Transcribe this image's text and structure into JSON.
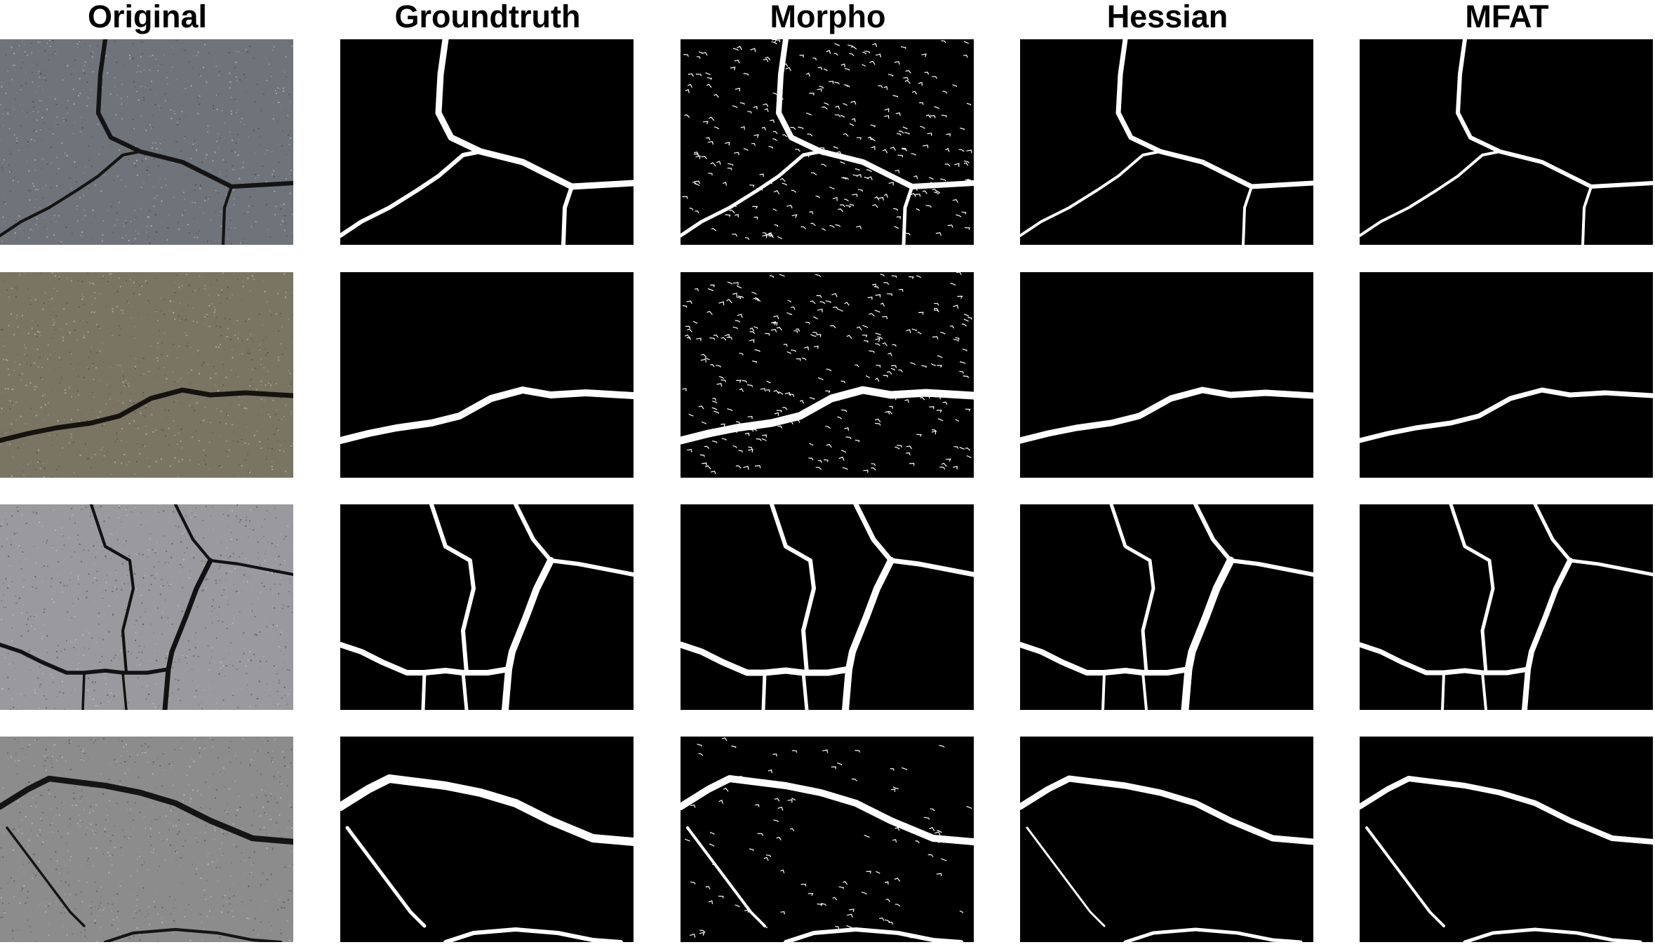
{
  "columns": [
    {
      "label": "Original"
    },
    {
      "label": "Groundtruth"
    },
    {
      "label": "Morpho"
    },
    {
      "label": "Hessian"
    },
    {
      "label": "MFAT"
    }
  ],
  "rows": [
    {
      "original_bg": "#6f747a",
      "crack_color": "#141414"
    },
    {
      "original_bg": "#7a7562",
      "crack_color": "#151310"
    },
    {
      "original_bg": "#9a9a9e",
      "crack_color": "#121212"
    },
    {
      "original_bg": "#8c8c8c",
      "crack_color": "#141414"
    }
  ],
  "colors": {
    "mask_bg": "#000000",
    "mask_fg": "#ffffff"
  }
}
